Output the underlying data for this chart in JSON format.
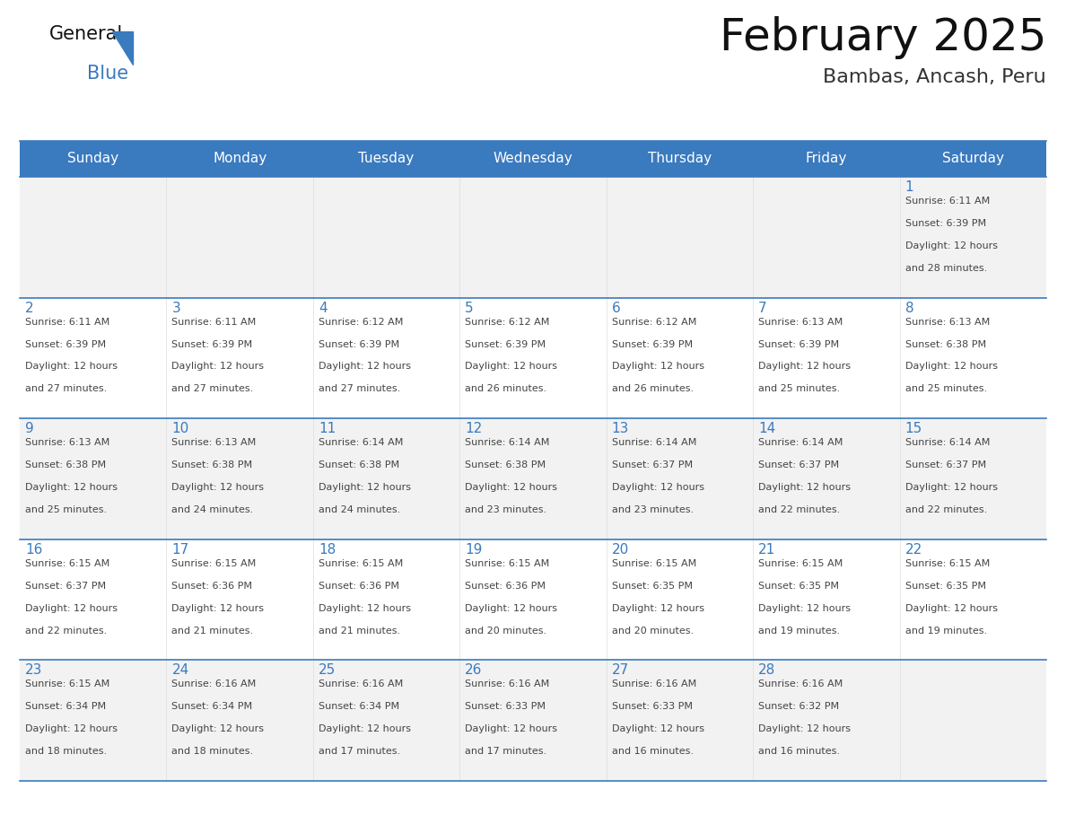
{
  "title": "February 2025",
  "subtitle": "Bambas, Ancash, Peru",
  "header_bg": "#3a7abf",
  "header_text": "#ffffff",
  "cell_bg_odd": "#f2f2f2",
  "cell_bg_even": "#ffffff",
  "border_color": "#3a7abf",
  "title_color": "#111111",
  "subtitle_color": "#333333",
  "day_number_color": "#3a7abf",
  "cell_text_color": "#444444",
  "days_of_week": [
    "Sunday",
    "Monday",
    "Tuesday",
    "Wednesday",
    "Thursday",
    "Friday",
    "Saturday"
  ],
  "weeks": [
    [
      {
        "day": null,
        "sunrise": null,
        "sunset": null,
        "daylight": null
      },
      {
        "day": null,
        "sunrise": null,
        "sunset": null,
        "daylight": null
      },
      {
        "day": null,
        "sunrise": null,
        "sunset": null,
        "daylight": null
      },
      {
        "day": null,
        "sunrise": null,
        "sunset": null,
        "daylight": null
      },
      {
        "day": null,
        "sunrise": null,
        "sunset": null,
        "daylight": null
      },
      {
        "day": null,
        "sunrise": null,
        "sunset": null,
        "daylight": null
      },
      {
        "day": 1,
        "sunrise": "6:11 AM",
        "sunset": "6:39 PM",
        "daylight": "12 hours\nand 28 minutes."
      }
    ],
    [
      {
        "day": 2,
        "sunrise": "6:11 AM",
        "sunset": "6:39 PM",
        "daylight": "12 hours\nand 27 minutes."
      },
      {
        "day": 3,
        "sunrise": "6:11 AM",
        "sunset": "6:39 PM",
        "daylight": "12 hours\nand 27 minutes."
      },
      {
        "day": 4,
        "sunrise": "6:12 AM",
        "sunset": "6:39 PM",
        "daylight": "12 hours\nand 27 minutes."
      },
      {
        "day": 5,
        "sunrise": "6:12 AM",
        "sunset": "6:39 PM",
        "daylight": "12 hours\nand 26 minutes."
      },
      {
        "day": 6,
        "sunrise": "6:12 AM",
        "sunset": "6:39 PM",
        "daylight": "12 hours\nand 26 minutes."
      },
      {
        "day": 7,
        "sunrise": "6:13 AM",
        "sunset": "6:39 PM",
        "daylight": "12 hours\nand 25 minutes."
      },
      {
        "day": 8,
        "sunrise": "6:13 AM",
        "sunset": "6:38 PM",
        "daylight": "12 hours\nand 25 minutes."
      }
    ],
    [
      {
        "day": 9,
        "sunrise": "6:13 AM",
        "sunset": "6:38 PM",
        "daylight": "12 hours\nand 25 minutes."
      },
      {
        "day": 10,
        "sunrise": "6:13 AM",
        "sunset": "6:38 PM",
        "daylight": "12 hours\nand 24 minutes."
      },
      {
        "day": 11,
        "sunrise": "6:14 AM",
        "sunset": "6:38 PM",
        "daylight": "12 hours\nand 24 minutes."
      },
      {
        "day": 12,
        "sunrise": "6:14 AM",
        "sunset": "6:38 PM",
        "daylight": "12 hours\nand 23 minutes."
      },
      {
        "day": 13,
        "sunrise": "6:14 AM",
        "sunset": "6:37 PM",
        "daylight": "12 hours\nand 23 minutes."
      },
      {
        "day": 14,
        "sunrise": "6:14 AM",
        "sunset": "6:37 PM",
        "daylight": "12 hours\nand 22 minutes."
      },
      {
        "day": 15,
        "sunrise": "6:14 AM",
        "sunset": "6:37 PM",
        "daylight": "12 hours\nand 22 minutes."
      }
    ],
    [
      {
        "day": 16,
        "sunrise": "6:15 AM",
        "sunset": "6:37 PM",
        "daylight": "12 hours\nand 22 minutes."
      },
      {
        "day": 17,
        "sunrise": "6:15 AM",
        "sunset": "6:36 PM",
        "daylight": "12 hours\nand 21 minutes."
      },
      {
        "day": 18,
        "sunrise": "6:15 AM",
        "sunset": "6:36 PM",
        "daylight": "12 hours\nand 21 minutes."
      },
      {
        "day": 19,
        "sunrise": "6:15 AM",
        "sunset": "6:36 PM",
        "daylight": "12 hours\nand 20 minutes."
      },
      {
        "day": 20,
        "sunrise": "6:15 AM",
        "sunset": "6:35 PM",
        "daylight": "12 hours\nand 20 minutes."
      },
      {
        "day": 21,
        "sunrise": "6:15 AM",
        "sunset": "6:35 PM",
        "daylight": "12 hours\nand 19 minutes."
      },
      {
        "day": 22,
        "sunrise": "6:15 AM",
        "sunset": "6:35 PM",
        "daylight": "12 hours\nand 19 minutes."
      }
    ],
    [
      {
        "day": 23,
        "sunrise": "6:15 AM",
        "sunset": "6:34 PM",
        "daylight": "12 hours\nand 18 minutes."
      },
      {
        "day": 24,
        "sunrise": "6:16 AM",
        "sunset": "6:34 PM",
        "daylight": "12 hours\nand 18 minutes."
      },
      {
        "day": 25,
        "sunrise": "6:16 AM",
        "sunset": "6:34 PM",
        "daylight": "12 hours\nand 17 minutes."
      },
      {
        "day": 26,
        "sunrise": "6:16 AM",
        "sunset": "6:33 PM",
        "daylight": "12 hours\nand 17 minutes."
      },
      {
        "day": 27,
        "sunrise": "6:16 AM",
        "sunset": "6:33 PM",
        "daylight": "12 hours\nand 16 minutes."
      },
      {
        "day": 28,
        "sunrise": "6:16 AM",
        "sunset": "6:32 PM",
        "daylight": "12 hours\nand 16 minutes."
      },
      {
        "day": null,
        "sunrise": null,
        "sunset": null,
        "daylight": null
      }
    ]
  ]
}
